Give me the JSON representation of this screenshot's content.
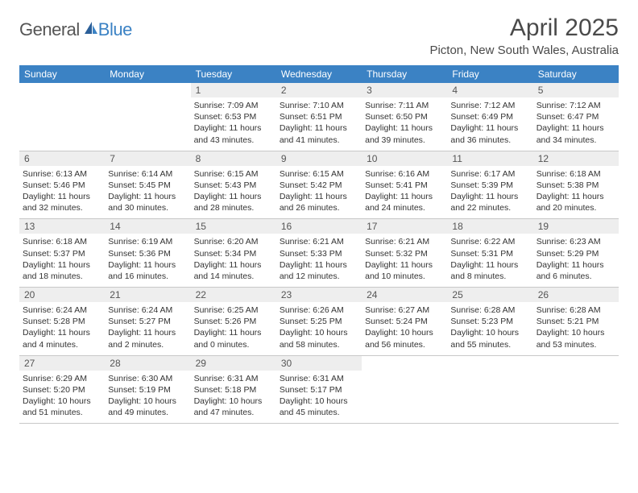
{
  "logo": {
    "general": "General",
    "blue": "Blue"
  },
  "title": "April 2025",
  "location": "Picton, New South Wales, Australia",
  "colors": {
    "header_bg": "#3b82c4",
    "header_text": "#ffffff",
    "daynum_bg": "#eeeeee",
    "text": "#333333",
    "border": "#c8c8c8"
  },
  "day_headers": [
    "Sunday",
    "Monday",
    "Tuesday",
    "Wednesday",
    "Thursday",
    "Friday",
    "Saturday"
  ],
  "weeks": [
    [
      {
        "empty": true
      },
      {
        "empty": true
      },
      {
        "day": "1",
        "sunrise": "Sunrise: 7:09 AM",
        "sunset": "Sunset: 6:53 PM",
        "dl1": "Daylight: 11 hours",
        "dl2": "and 43 minutes."
      },
      {
        "day": "2",
        "sunrise": "Sunrise: 7:10 AM",
        "sunset": "Sunset: 6:51 PM",
        "dl1": "Daylight: 11 hours",
        "dl2": "and 41 minutes."
      },
      {
        "day": "3",
        "sunrise": "Sunrise: 7:11 AM",
        "sunset": "Sunset: 6:50 PM",
        "dl1": "Daylight: 11 hours",
        "dl2": "and 39 minutes."
      },
      {
        "day": "4",
        "sunrise": "Sunrise: 7:12 AM",
        "sunset": "Sunset: 6:49 PM",
        "dl1": "Daylight: 11 hours",
        "dl2": "and 36 minutes."
      },
      {
        "day": "5",
        "sunrise": "Sunrise: 7:12 AM",
        "sunset": "Sunset: 6:47 PM",
        "dl1": "Daylight: 11 hours",
        "dl2": "and 34 minutes."
      }
    ],
    [
      {
        "day": "6",
        "sunrise": "Sunrise: 6:13 AM",
        "sunset": "Sunset: 5:46 PM",
        "dl1": "Daylight: 11 hours",
        "dl2": "and 32 minutes."
      },
      {
        "day": "7",
        "sunrise": "Sunrise: 6:14 AM",
        "sunset": "Sunset: 5:45 PM",
        "dl1": "Daylight: 11 hours",
        "dl2": "and 30 minutes."
      },
      {
        "day": "8",
        "sunrise": "Sunrise: 6:15 AM",
        "sunset": "Sunset: 5:43 PM",
        "dl1": "Daylight: 11 hours",
        "dl2": "and 28 minutes."
      },
      {
        "day": "9",
        "sunrise": "Sunrise: 6:15 AM",
        "sunset": "Sunset: 5:42 PM",
        "dl1": "Daylight: 11 hours",
        "dl2": "and 26 minutes."
      },
      {
        "day": "10",
        "sunrise": "Sunrise: 6:16 AM",
        "sunset": "Sunset: 5:41 PM",
        "dl1": "Daylight: 11 hours",
        "dl2": "and 24 minutes."
      },
      {
        "day": "11",
        "sunrise": "Sunrise: 6:17 AM",
        "sunset": "Sunset: 5:39 PM",
        "dl1": "Daylight: 11 hours",
        "dl2": "and 22 minutes."
      },
      {
        "day": "12",
        "sunrise": "Sunrise: 6:18 AM",
        "sunset": "Sunset: 5:38 PM",
        "dl1": "Daylight: 11 hours",
        "dl2": "and 20 minutes."
      }
    ],
    [
      {
        "day": "13",
        "sunrise": "Sunrise: 6:18 AM",
        "sunset": "Sunset: 5:37 PM",
        "dl1": "Daylight: 11 hours",
        "dl2": "and 18 minutes."
      },
      {
        "day": "14",
        "sunrise": "Sunrise: 6:19 AM",
        "sunset": "Sunset: 5:36 PM",
        "dl1": "Daylight: 11 hours",
        "dl2": "and 16 minutes."
      },
      {
        "day": "15",
        "sunrise": "Sunrise: 6:20 AM",
        "sunset": "Sunset: 5:34 PM",
        "dl1": "Daylight: 11 hours",
        "dl2": "and 14 minutes."
      },
      {
        "day": "16",
        "sunrise": "Sunrise: 6:21 AM",
        "sunset": "Sunset: 5:33 PM",
        "dl1": "Daylight: 11 hours",
        "dl2": "and 12 minutes."
      },
      {
        "day": "17",
        "sunrise": "Sunrise: 6:21 AM",
        "sunset": "Sunset: 5:32 PM",
        "dl1": "Daylight: 11 hours",
        "dl2": "and 10 minutes."
      },
      {
        "day": "18",
        "sunrise": "Sunrise: 6:22 AM",
        "sunset": "Sunset: 5:31 PM",
        "dl1": "Daylight: 11 hours",
        "dl2": "and 8 minutes."
      },
      {
        "day": "19",
        "sunrise": "Sunrise: 6:23 AM",
        "sunset": "Sunset: 5:29 PM",
        "dl1": "Daylight: 11 hours",
        "dl2": "and 6 minutes."
      }
    ],
    [
      {
        "day": "20",
        "sunrise": "Sunrise: 6:24 AM",
        "sunset": "Sunset: 5:28 PM",
        "dl1": "Daylight: 11 hours",
        "dl2": "and 4 minutes."
      },
      {
        "day": "21",
        "sunrise": "Sunrise: 6:24 AM",
        "sunset": "Sunset: 5:27 PM",
        "dl1": "Daylight: 11 hours",
        "dl2": "and 2 minutes."
      },
      {
        "day": "22",
        "sunrise": "Sunrise: 6:25 AM",
        "sunset": "Sunset: 5:26 PM",
        "dl1": "Daylight: 11 hours",
        "dl2": "and 0 minutes."
      },
      {
        "day": "23",
        "sunrise": "Sunrise: 6:26 AM",
        "sunset": "Sunset: 5:25 PM",
        "dl1": "Daylight: 10 hours",
        "dl2": "and 58 minutes."
      },
      {
        "day": "24",
        "sunrise": "Sunrise: 6:27 AM",
        "sunset": "Sunset: 5:24 PM",
        "dl1": "Daylight: 10 hours",
        "dl2": "and 56 minutes."
      },
      {
        "day": "25",
        "sunrise": "Sunrise: 6:28 AM",
        "sunset": "Sunset: 5:23 PM",
        "dl1": "Daylight: 10 hours",
        "dl2": "and 55 minutes."
      },
      {
        "day": "26",
        "sunrise": "Sunrise: 6:28 AM",
        "sunset": "Sunset: 5:21 PM",
        "dl1": "Daylight: 10 hours",
        "dl2": "and 53 minutes."
      }
    ],
    [
      {
        "day": "27",
        "sunrise": "Sunrise: 6:29 AM",
        "sunset": "Sunset: 5:20 PM",
        "dl1": "Daylight: 10 hours",
        "dl2": "and 51 minutes."
      },
      {
        "day": "28",
        "sunrise": "Sunrise: 6:30 AM",
        "sunset": "Sunset: 5:19 PM",
        "dl1": "Daylight: 10 hours",
        "dl2": "and 49 minutes."
      },
      {
        "day": "29",
        "sunrise": "Sunrise: 6:31 AM",
        "sunset": "Sunset: 5:18 PM",
        "dl1": "Daylight: 10 hours",
        "dl2": "and 47 minutes."
      },
      {
        "day": "30",
        "sunrise": "Sunrise: 6:31 AM",
        "sunset": "Sunset: 5:17 PM",
        "dl1": "Daylight: 10 hours",
        "dl2": "and 45 minutes."
      },
      {
        "empty": true
      },
      {
        "empty": true
      },
      {
        "empty": true
      }
    ]
  ]
}
